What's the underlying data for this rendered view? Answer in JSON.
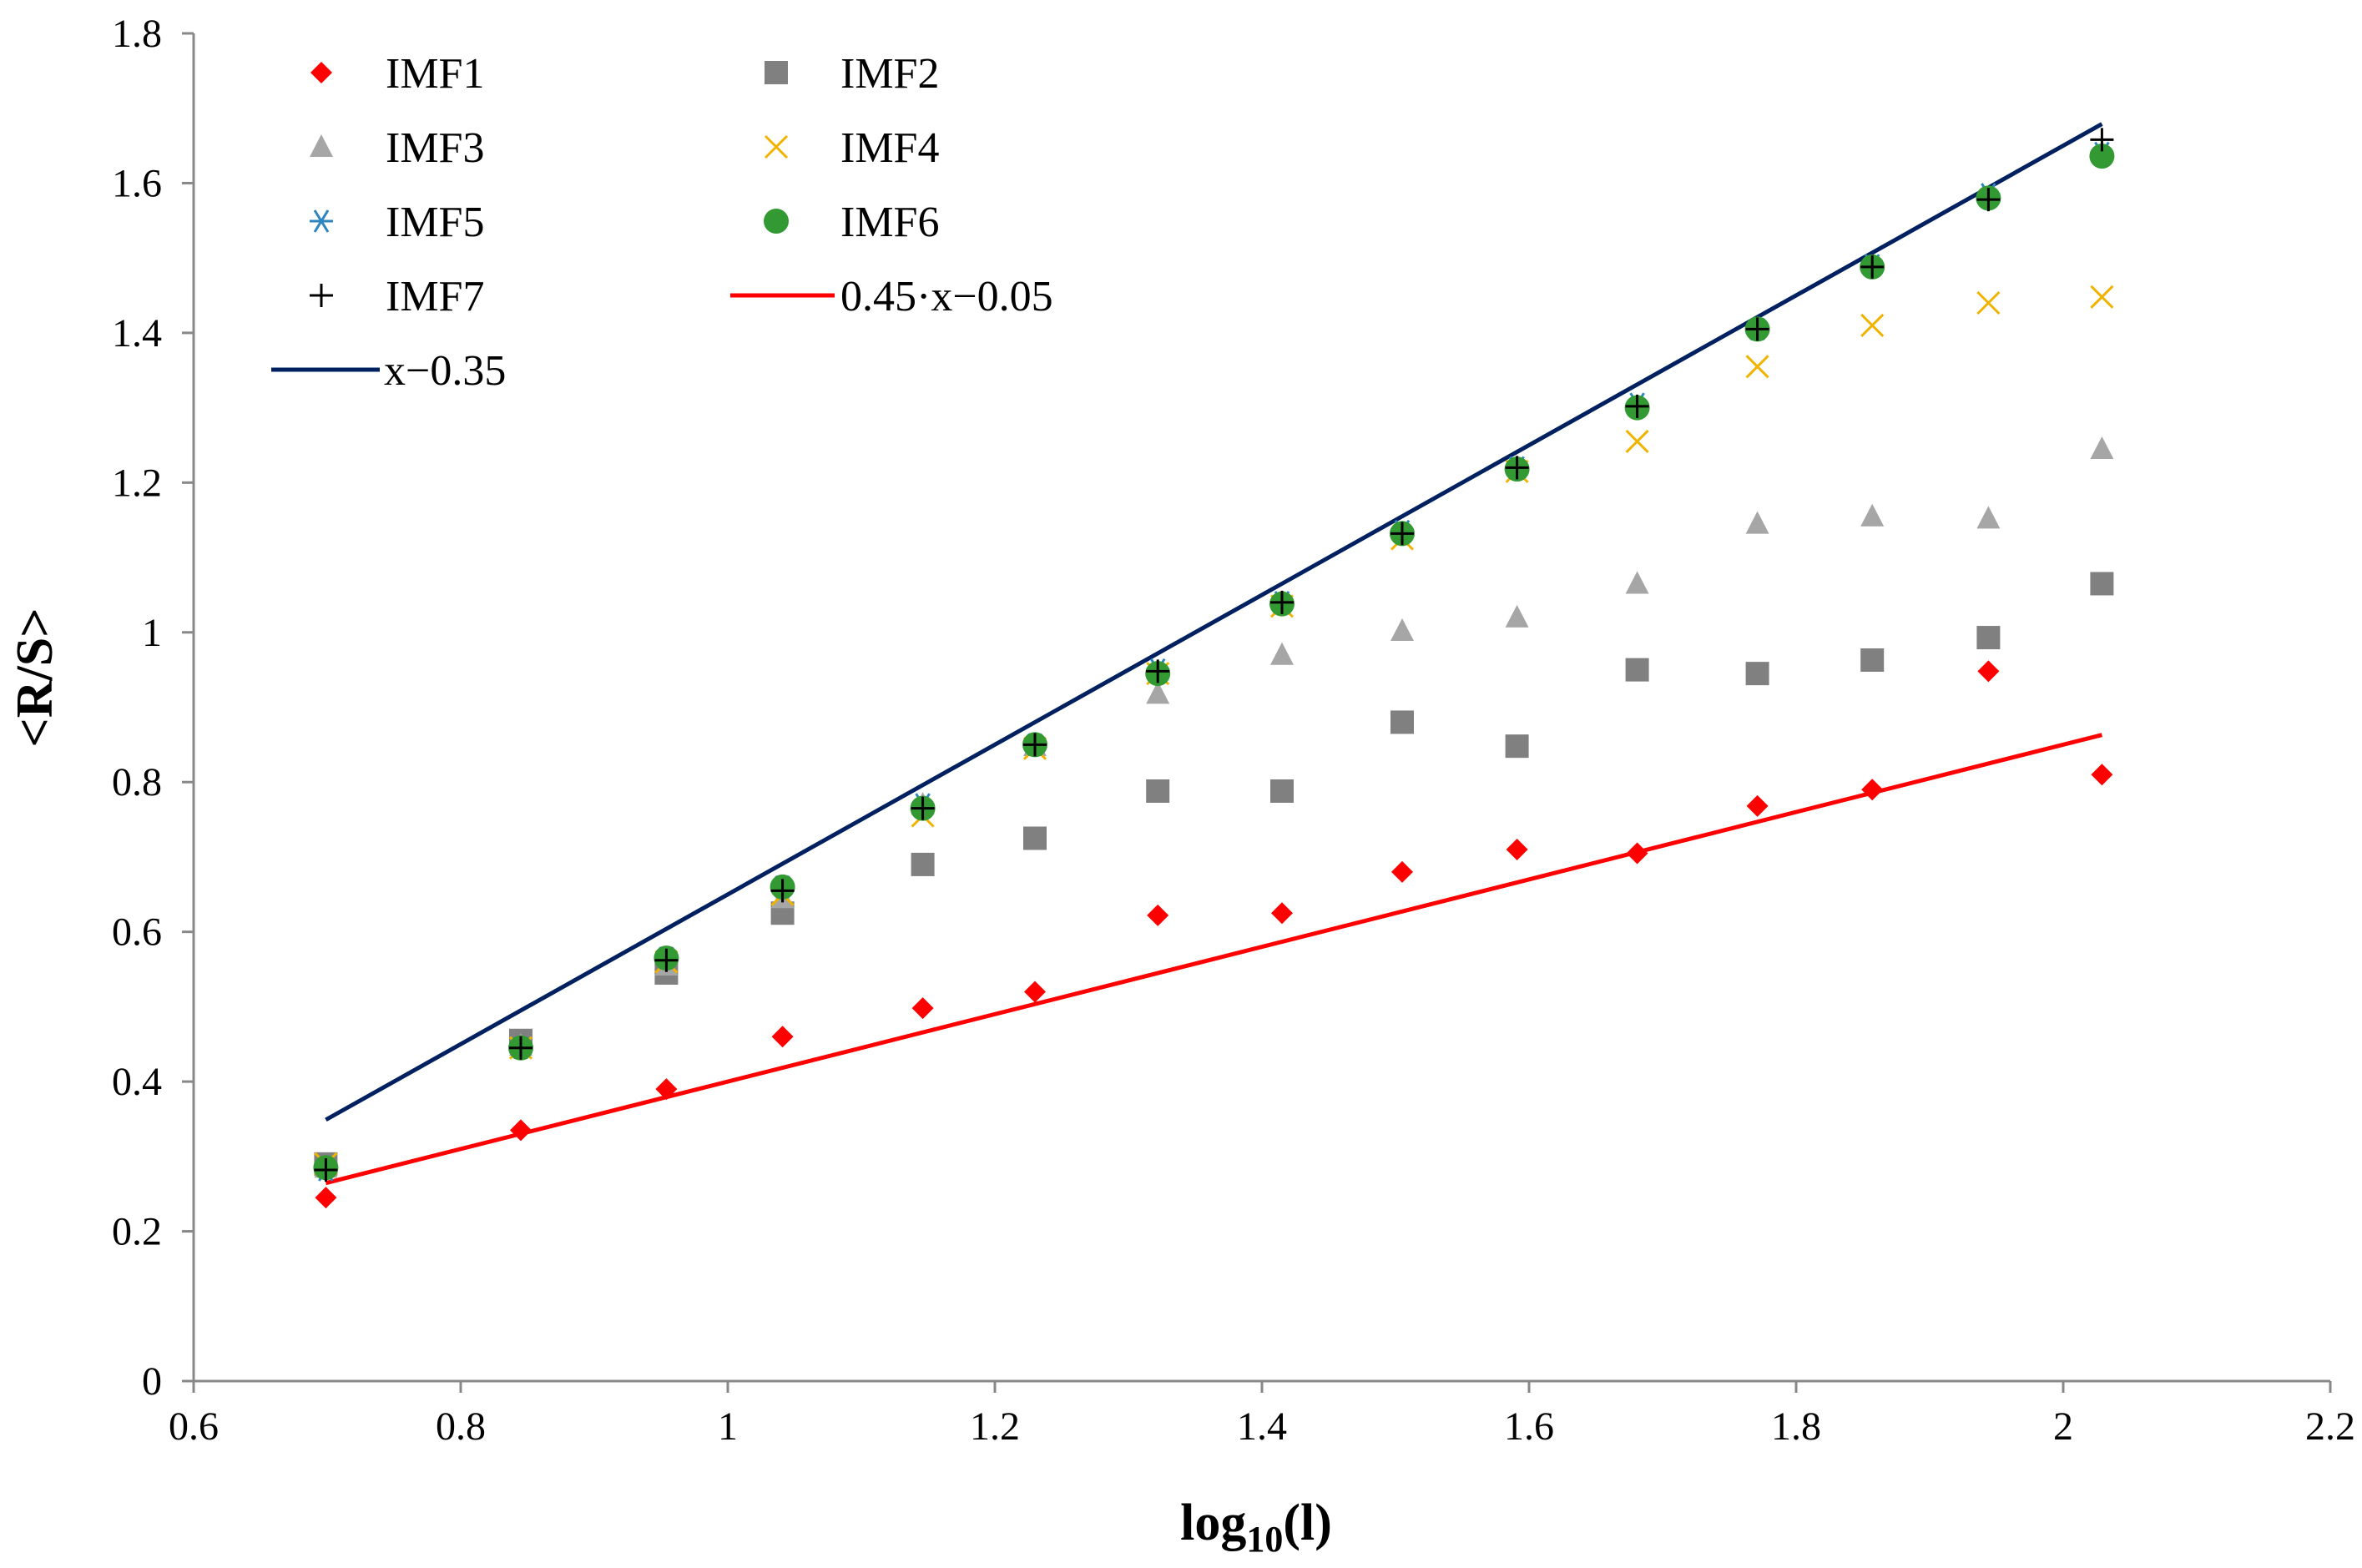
{
  "chart_data": {
    "type": "scatter",
    "title": "",
    "xlabel": "log10(l)",
    "xlabel_main": "log",
    "xlabel_sub": "10",
    "xlabel_tail": "(l)",
    "ylabel": "<R/S>",
    "xlim": [
      0.6,
      2.2
    ],
    "ylim": [
      0,
      1.8
    ],
    "xticks": [
      0.6,
      0.8,
      1,
      1.2,
      1.4,
      1.6,
      1.8,
      2,
      2.2
    ],
    "xtick_labels": [
      "0.6",
      "0.8",
      "1",
      "1.2",
      "1.4",
      "1.6",
      "1.8",
      "2",
      "2.2"
    ],
    "yticks": [
      0,
      0.2,
      0.4,
      0.6,
      0.8,
      1,
      1.2,
      1.4,
      1.6,
      1.8
    ],
    "ytick_labels": [
      "0",
      "0.2",
      "0.4",
      "0.6",
      "0.8",
      "1",
      "1.2",
      "1.4",
      "1.6",
      "1.8"
    ],
    "grid": false,
    "legend_position": "top-left",
    "x": [
      0.699,
      0.845,
      0.954,
      1.041,
      1.146,
      1.23,
      1.322,
      1.415,
      1.505,
      1.591,
      1.681,
      1.771,
      1.857,
      1.944,
      2.029
    ],
    "series": [
      {
        "name": "IMF1",
        "marker": "diamond",
        "color": "#ff0000",
        "values": [
          0.245,
          0.335,
          0.39,
          0.46,
          0.498,
          0.52,
          0.622,
          0.625,
          0.68,
          0.71,
          0.705,
          0.768,
          0.79,
          0.948,
          0.81
        ]
      },
      {
        "name": "IMF2",
        "marker": "square",
        "color": "#808080",
        "values": [
          0.29,
          0.455,
          0.545,
          0.625,
          0.69,
          0.725,
          0.788,
          0.788,
          0.88,
          0.848,
          0.95,
          0.945,
          0.963,
          0.993,
          1.065
        ]
      },
      {
        "name": "IMF3",
        "marker": "triangle",
        "color": "#a6a6a6",
        "values": [
          0.285,
          0.448,
          0.555,
          0.645,
          0.77,
          0.848,
          0.918,
          0.97,
          1.002,
          1.02,
          1.065,
          1.145,
          1.155,
          1.152,
          1.245
        ]
      },
      {
        "name": "IMF4",
        "marker": "x",
        "color": "#f0b400",
        "values": [
          0.29,
          0.445,
          0.56,
          0.65,
          0.755,
          0.845,
          0.945,
          1.035,
          1.125,
          1.215,
          1.255,
          1.355,
          1.41,
          1.44,
          1.448
        ]
      },
      {
        "name": "IMF5",
        "marker": "asterisk",
        "color": "#2e86c1",
        "values": [
          0.282,
          0.445,
          0.565,
          0.66,
          0.77,
          0.85,
          0.95,
          1.04,
          1.135,
          1.22,
          1.305,
          1.405,
          1.49,
          1.585,
          1.64
        ]
      },
      {
        "name": "IMF6",
        "marker": "circle",
        "color": "#339933",
        "values": [
          0.285,
          0.445,
          0.565,
          0.66,
          0.765,
          0.85,
          0.945,
          1.038,
          1.132,
          1.218,
          1.3,
          1.405,
          1.488,
          1.58,
          1.636
        ]
      },
      {
        "name": "IMF7",
        "marker": "plus",
        "color": "#000000",
        "values": [
          0.282,
          0.445,
          0.562,
          0.655,
          0.765,
          0.85,
          0.948,
          1.04,
          1.132,
          1.22,
          1.302,
          1.405,
          1.488,
          1.578,
          1.658
        ]
      }
    ],
    "lines": [
      {
        "name": "0.45·x−0.05",
        "slope": 0.45,
        "intercept": -0.05,
        "x_range": [
          0.699,
          2.029
        ],
        "color": "#ff0000"
      },
      {
        "name": "x−0.35",
        "slope": 1.0,
        "intercept": -0.35,
        "x_range": [
          0.699,
          2.029
        ],
        "color": "#002060"
      }
    ]
  }
}
